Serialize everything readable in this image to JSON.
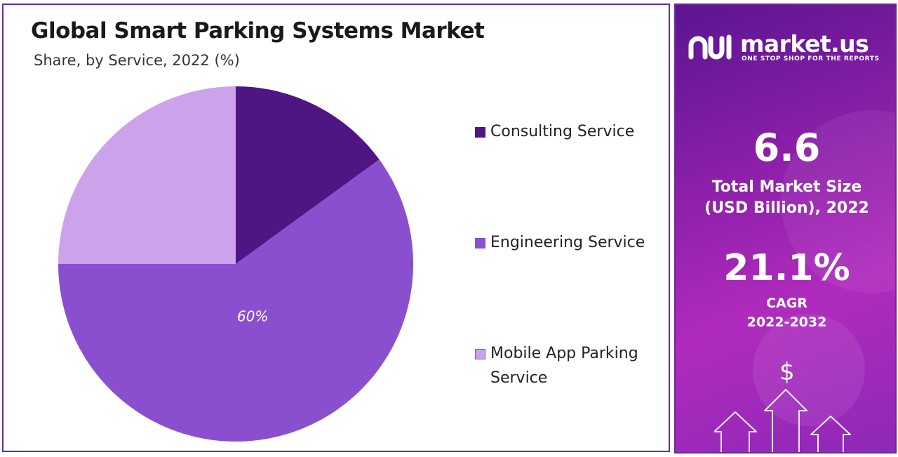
{
  "chart_data": {
    "type": "pie",
    "title": "Global Smart Parking Systems Market",
    "subtitle": "Share, by Service, 2022 (%)",
    "categories": [
      "Consulting Service",
      "Engineering Service",
      "Mobile App Parking Service"
    ],
    "values": [
      15,
      60,
      25
    ],
    "data_labels": [
      "",
      "60%",
      ""
    ],
    "colors": [
      "#4e1583",
      "#8a4fcf",
      "#cca3ea"
    ],
    "legend_placement": "right",
    "start_angle_deg": 0,
    "direction": "clockwise"
  },
  "sidebar": {
    "brand": "market.us",
    "tagline": "ONE STOP SHOP FOR THE REPORTS",
    "logo_icon": "market-us-logo-icon",
    "market_size_value": "6.6",
    "market_size_label_line1": "Total Market Size",
    "market_size_label_line2": "(USD Billion), 2022",
    "cagr_value": "21.1%",
    "cagr_label_line1": "CAGR",
    "cagr_label_line2": "2022-2032",
    "dollar_symbol": "$",
    "accent_color": "#8a1fa8"
  }
}
